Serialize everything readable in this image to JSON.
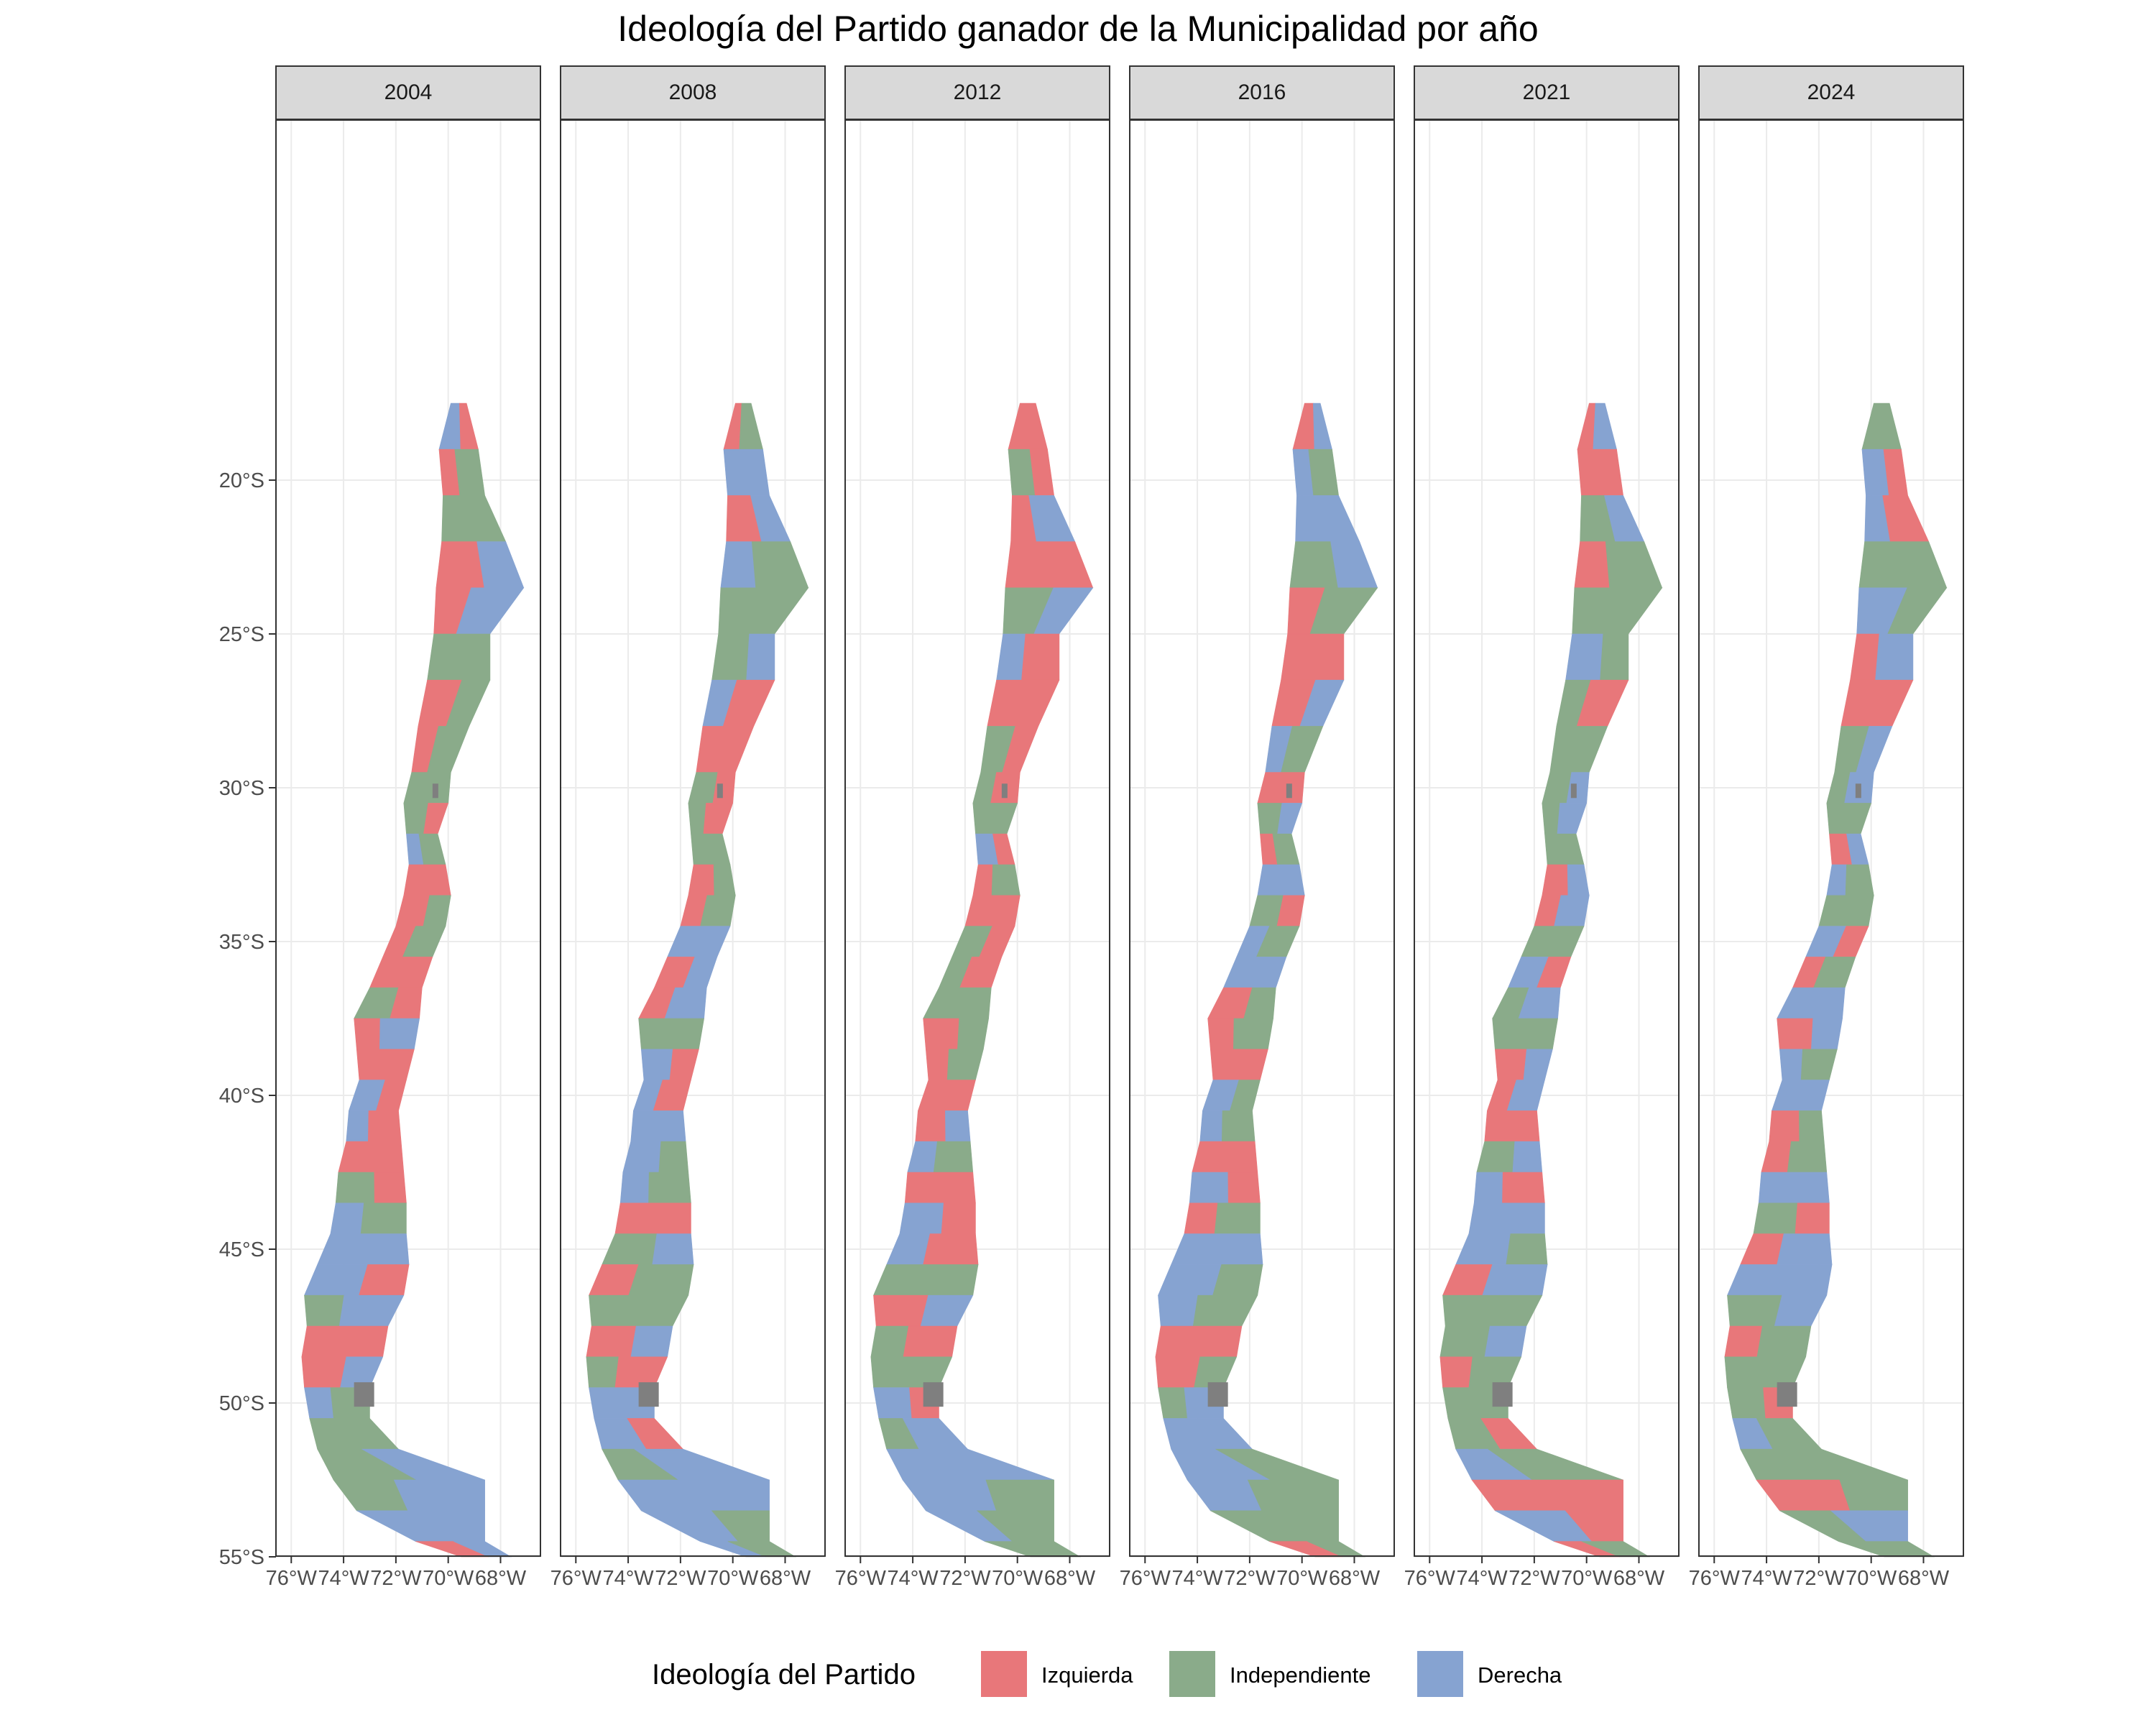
{
  "title": "Ideología del Partido ganador de la Municipalidad por año",
  "panels": [
    {
      "year": "2004"
    },
    {
      "year": "2008"
    },
    {
      "year": "2012"
    },
    {
      "year": "2016"
    },
    {
      "year": "2021"
    },
    {
      "year": "2024"
    }
  ],
  "axes": {
    "lon_ticks": [
      -76,
      -74,
      -72,
      -70,
      -68
    ],
    "lon_labels": [
      "76°W",
      "74°W",
      "72°W",
      "70°W",
      "68°W"
    ],
    "lat_ticks": [
      -20,
      -25,
      -30,
      -35,
      -40,
      -45,
      -50,
      -55
    ],
    "lat_labels": [
      "20°S",
      "25°S",
      "30°S",
      "35°S",
      "40°S",
      "45°S",
      "50°S",
      "55°S"
    ],
    "lon_range": [
      -76.2,
      -66.4
    ],
    "lat_range": [
      -55.4,
      -16.2
    ]
  },
  "legend": {
    "title": "Ideología del Partido",
    "items": [
      {
        "label": "Izquierda",
        "color": "#e8777a"
      },
      {
        "label": "Independiente",
        "color": "#8aab8a"
      },
      {
        "label": "Derecha",
        "color": "#86a3d1"
      }
    ],
    "missing_color": "#7f7f7f"
  },
  "chart_data": {
    "type": "choropleth-map",
    "region": "Chile (comunas)",
    "facets": [
      "2004",
      "2008",
      "2012",
      "2016",
      "2021",
      "2024"
    ],
    "categories": [
      "Izquierda",
      "Independiente",
      "Derecha"
    ],
    "grid": true,
    "legend_position": "bottom",
    "lat_bands": [
      -17.5,
      -19,
      -20.5,
      -22,
      -23.5,
      -25,
      -26.5,
      -28,
      -29.5,
      -30.5,
      -31.5,
      -32.5,
      -33.5,
      -34.5,
      -35.5,
      -36.5,
      -37.5,
      -38.5,
      -39.5,
      -40.5,
      -41.5,
      -42.5,
      -43.5,
      -44.5,
      -45.5,
      -46.5,
      -47.5,
      -48.5,
      -49.5,
      -50.5,
      -51.5,
      -52.5,
      -53.5,
      -54.5,
      -55
    ],
    "dominant_by_year": {
      "2004": [
        "D",
        "I",
        "I",
        "L",
        "D",
        "I",
        "L",
        "I",
        "I",
        "I",
        "I",
        "L",
        "L",
        "I",
        "L",
        "I",
        "D",
        "L",
        "D",
        "L",
        "L",
        "I",
        "I",
        "D",
        "D",
        "D",
        "L",
        "L",
        "I",
        "I",
        "I",
        "D",
        "D",
        "L",
        "M"
      ],
      "2008": [
        "I",
        "D",
        "L",
        "I",
        "I",
        "I",
        "L",
        "L",
        "I",
        "L",
        "I",
        "L",
        "I",
        "D",
        "L",
        "D",
        "I",
        "D",
        "L",
        "D",
        "D",
        "I",
        "L",
        "I",
        "I",
        "I",
        "L",
        "L",
        "D",
        "D",
        "D",
        "D",
        "D",
        "I",
        "M"
      ],
      "2012": [
        "L",
        "I",
        "D",
        "L",
        "I",
        "L",
        "L",
        "I",
        "L",
        "I",
        "D",
        "I",
        "L",
        "I",
        "L",
        "I",
        "L",
        "I",
        "L",
        "L",
        "I",
        "L",
        "D",
        "L",
        "I",
        "L",
        "L",
        "I",
        "D",
        "D",
        "D",
        "D",
        "I",
        "I",
        "M"
      ],
      "2016": [
        "L",
        "I",
        "D",
        "I",
        "I",
        "L",
        "L",
        "I",
        "L",
        "I",
        "I",
        "D",
        "I",
        "I",
        "D",
        "L",
        "I",
        "L",
        "D",
        "I",
        "L",
        "D",
        "I",
        "D",
        "D",
        "I",
        "L",
        "L",
        "D",
        "D",
        "D",
        "I",
        "I",
        "L",
        "M"
      ],
      "2021": [
        "D",
        "L",
        "I",
        "I",
        "I",
        "D",
        "L",
        "I",
        "I",
        "D",
        "I",
        "L",
        "D",
        "I",
        "D",
        "D",
        "I",
        "L",
        "D",
        "L",
        "I",
        "L",
        "D",
        "D",
        "D",
        "I",
        "I",
        "I",
        "I",
        "I",
        "I",
        "L",
        "D",
        "I",
        "M"
      ],
      "2024": [
        "I",
        "D",
        "L",
        "I",
        "D",
        "D",
        "L",
        "I",
        "D",
        "I",
        "L",
        "I",
        "I",
        "D",
        "I",
        "D",
        "L",
        "I",
        "D",
        "L",
        "I",
        "D",
        "I",
        "D",
        "D",
        "I",
        "I",
        "I",
        "I",
        "I",
        "I",
        "L",
        "D",
        "I",
        "M"
      ]
    }
  }
}
